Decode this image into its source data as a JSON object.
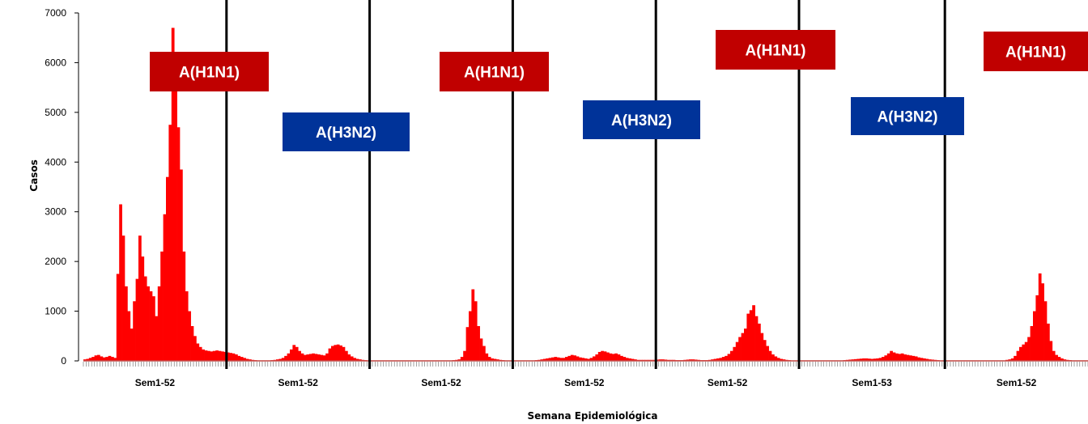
{
  "chart_data": {
    "type": "bar",
    "ylabel": "Casos",
    "xlabel": "Semana Epidemiológica",
    "ylim": [
      0,
      7000
    ],
    "yticks": [
      0,
      1000,
      2000,
      3000,
      4000,
      5000,
      6000,
      7000
    ],
    "grid": false,
    "bar_color": "#ff0000",
    "season_labels": [
      "Sem1-52",
      "Sem1-52",
      "Sem1-52",
      "Sem1-52",
      "Sem1-52",
      "Sem1-53",
      "Sem1-52"
    ],
    "season_week_counts": [
      52,
      52,
      52,
      52,
      52,
      53,
      52
    ],
    "seasons": [
      [
        30,
        40,
        60,
        80,
        110,
        120,
        90,
        70,
        80,
        100,
        80,
        60,
        1750,
        3150,
        2520,
        1500,
        1000,
        650,
        1200,
        1650,
        2520,
        2100,
        1700,
        1500,
        1400,
        1300,
        900,
        1500,
        2200,
        2950,
        3700,
        4750,
        6700,
        5700,
        4700,
        3850,
        2200,
        1400,
        1000,
        700,
        500,
        350,
        280,
        230,
        210,
        200,
        190,
        200,
        210,
        200,
        190,
        180
      ],
      [
        170,
        160,
        150,
        130,
        100,
        80,
        60,
        40,
        30,
        20,
        15,
        10,
        10,
        10,
        10,
        10,
        15,
        20,
        30,
        40,
        60,
        100,
        150,
        230,
        320,
        280,
        200,
        150,
        120,
        130,
        140,
        150,
        140,
        130,
        120,
        110,
        150,
        250,
        300,
        320,
        330,
        310,
        280,
        200,
        130,
        90,
        60,
        40,
        30,
        20,
        15,
        10
      ],
      [
        10,
        10,
        10,
        10,
        10,
        10,
        10,
        10,
        10,
        10,
        10,
        10,
        10,
        10,
        10,
        10,
        10,
        10,
        10,
        10,
        10,
        10,
        10,
        10,
        10,
        10,
        10,
        10,
        10,
        10,
        15,
        20,
        30,
        80,
        200,
        680,
        1000,
        1440,
        1200,
        700,
        450,
        300,
        150,
        80,
        50,
        40,
        30,
        20,
        15,
        10,
        10,
        10
      ],
      [
        10,
        10,
        10,
        10,
        10,
        10,
        10,
        10,
        15,
        20,
        30,
        40,
        50,
        60,
        70,
        80,
        70,
        60,
        60,
        80,
        100,
        120,
        110,
        90,
        70,
        60,
        50,
        40,
        60,
        90,
        130,
        180,
        200,
        190,
        170,
        150,
        140,
        150,
        130,
        100,
        80,
        60,
        50,
        40,
        30,
        20,
        20,
        20,
        20,
        20,
        20,
        20
      ],
      [
        25,
        30,
        30,
        25,
        20,
        20,
        20,
        15,
        15,
        15,
        20,
        25,
        30,
        30,
        25,
        20,
        15,
        15,
        15,
        20,
        30,
        40,
        50,
        60,
        80,
        100,
        140,
        200,
        280,
        380,
        480,
        560,
        650,
        950,
        1020,
        1120,
        900,
        750,
        560,
        420,
        300,
        200,
        130,
        90,
        60,
        40,
        30,
        20,
        15,
        10,
        10,
        10
      ],
      [
        10,
        10,
        10,
        10,
        10,
        10,
        10,
        10,
        10,
        10,
        10,
        10,
        10,
        10,
        10,
        10,
        15,
        20,
        25,
        30,
        35,
        40,
        45,
        50,
        50,
        45,
        40,
        45,
        50,
        60,
        80,
        110,
        150,
        200,
        170,
        150,
        140,
        150,
        130,
        120,
        110,
        100,
        90,
        70,
        60,
        50,
        40,
        30,
        25,
        20,
        15,
        10,
        10
      ],
      [
        10,
        10,
        10,
        10,
        10,
        10,
        10,
        10,
        10,
        10,
        10,
        10,
        10,
        10,
        10,
        10,
        10,
        10,
        10,
        10,
        10,
        10,
        20,
        30,
        50,
        100,
        200,
        280,
        330,
        380,
        480,
        700,
        1000,
        1320,
        1760,
        1560,
        1200,
        750,
        400,
        200,
        120,
        80,
        50,
        30,
        20,
        15,
        10,
        10,
        10,
        10,
        10,
        10
      ]
    ],
    "annotations": [
      {
        "text": "A(H1N1)",
        "color": "#c00000"
      },
      {
        "text": "A(H3N2)",
        "color": "#003399"
      },
      {
        "text": "A(H1N1)",
        "color": "#c00000"
      },
      {
        "text": "A(H3N2)",
        "color": "#003399"
      },
      {
        "text": "A(H1N1)",
        "color": "#c00000"
      },
      {
        "text": "A(H3N2)",
        "color": "#003399"
      },
      {
        "text": "A(H1N1)",
        "color": "#c00000"
      }
    ]
  }
}
